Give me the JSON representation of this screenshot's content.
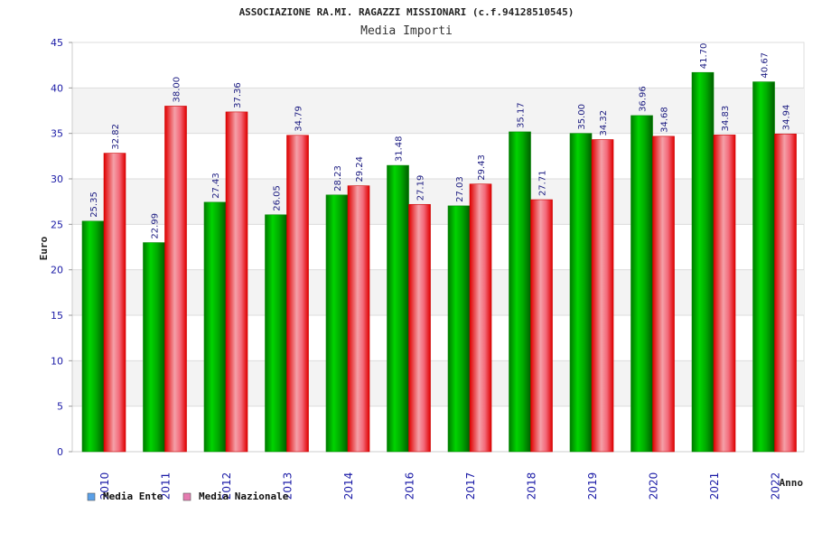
{
  "chart_data": {
    "type": "bar",
    "title": "ASSOCIAZIONE RA.MI. RAGAZZI MISSIONARI (c.f.94128510545)",
    "subtitle": "Media Importi",
    "xlabel": "Anno",
    "ylabel": "Euro",
    "ylim": [
      0,
      45
    ],
    "ytick_step": 5,
    "grid": true,
    "legend_position": "bottom-left",
    "categories": [
      "2010",
      "2011",
      "2012",
      "2013",
      "2014",
      "2016",
      "2017",
      "2018",
      "2019",
      "2020",
      "2021",
      "2022"
    ],
    "series": [
      {
        "name": "Media Ente",
        "color": "#00b000",
        "legend_color": "#5aa0e8",
        "values": [
          25.35,
          22.99,
          27.43,
          26.05,
          28.23,
          31.48,
          27.03,
          35.17,
          35.0,
          36.96,
          41.7,
          40.67
        ],
        "labels": [
          "25.35",
          "22.99",
          "27.43",
          "26.05",
          "28.23",
          "31.48",
          "27.03",
          "35.17",
          "35.00",
          "36.96",
          "41.70",
          "40.67"
        ]
      },
      {
        "name": "Media Nazionale",
        "color": "#ee1111",
        "legend_color": "#e57bb0",
        "values": [
          32.82,
          38.0,
          37.36,
          34.79,
          29.24,
          27.19,
          29.43,
          27.71,
          34.32,
          34.68,
          34.83,
          34.94
        ],
        "labels": [
          "32.82",
          "38.00",
          "37.36",
          "34.79",
          "29.24",
          "27.19",
          "29.43",
          "27.71",
          "34.32",
          "34.68",
          "34.83",
          "34.94"
        ]
      }
    ]
  }
}
